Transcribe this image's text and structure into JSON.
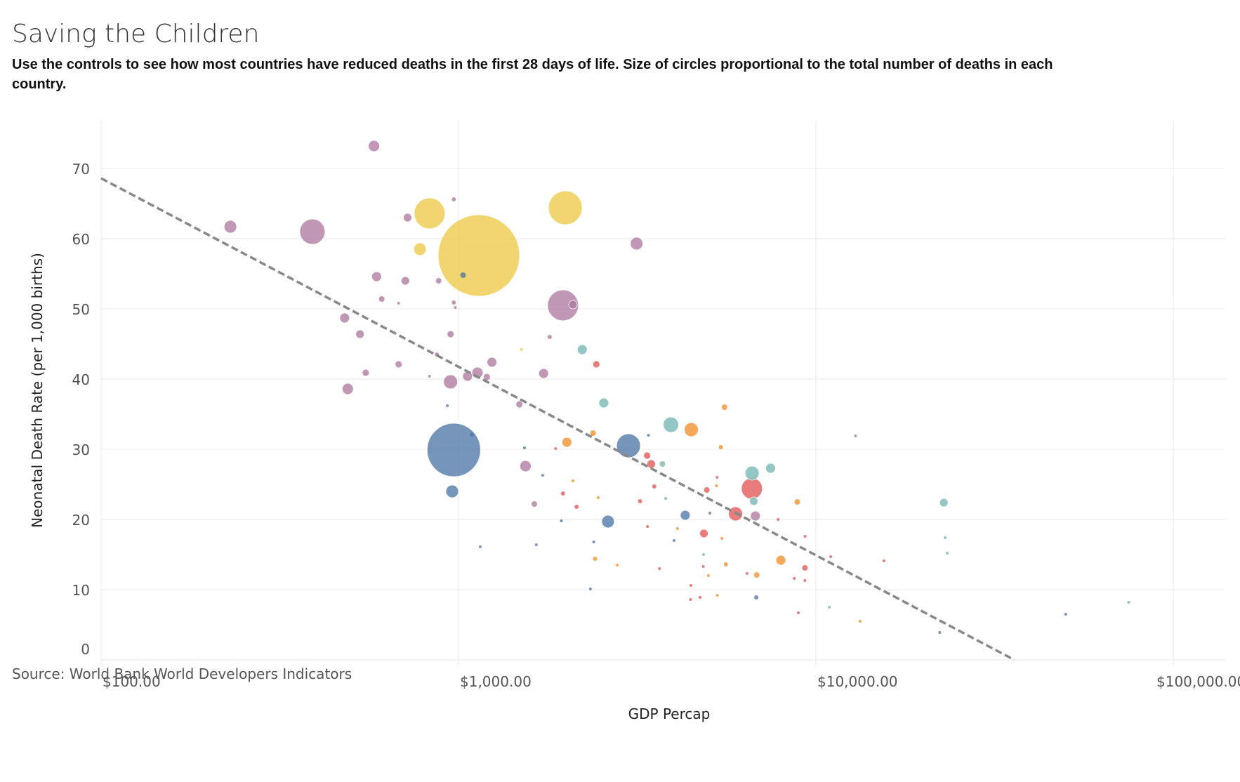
{
  "title": "Saving the Children",
  "subtitle": "Use the controls to see how most countries have reduced deaths in the first 28 days of life. Size of circles proportional to the total number of deaths in each country.",
  "source": "Source: World Bank World Developers Indicators",
  "colors": {
    "purple": "#b07aa1",
    "yellow": "#edc948",
    "blue": "#4e79a7",
    "teal": "#76b7b2",
    "red": "#e15759",
    "orange": "#f28e2b",
    "trend": "#888888",
    "grid": "#e8e8e8"
  },
  "chart_data": {
    "type": "scatter",
    "xlabel": "GDP Percap",
    "ylabel": "Neonatal Death Rate (per 1,000 births)",
    "x_scale": "log",
    "xlim": [
      100,
      130000
    ],
    "ylim": [
      0,
      77
    ],
    "x_ticks": [
      {
        "value": 100,
        "label": "$100.00"
      },
      {
        "value": 1000,
        "label": "$1,000.00"
      },
      {
        "value": 10000,
        "label": "$10,000.00"
      },
      {
        "value": 100000,
        "label": "$100,000.00"
      }
    ],
    "y_ticks": [
      0,
      10,
      20,
      30,
      40,
      50,
      60,
      70
    ],
    "trend_line": {
      "style": "dashed",
      "points": [
        [
          100,
          68.6
        ],
        [
          35900,
          0
        ]
      ]
    },
    "points": [
      {
        "gdp": 580,
        "rate": 73.2,
        "r": 8,
        "color": "purple"
      },
      {
        "gdp": 230,
        "rate": 61.7,
        "r": 9,
        "color": "purple"
      },
      {
        "gdp": 390,
        "rate": 61.0,
        "r": 18,
        "color": "purple"
      },
      {
        "gdp": 830,
        "rate": 63.6,
        "r": 22,
        "color": "yellow"
      },
      {
        "gdp": 720,
        "rate": 63.0,
        "r": 6,
        "color": "purple"
      },
      {
        "gdp": 970,
        "rate": 65.6,
        "r": 3,
        "color": "purple"
      },
      {
        "gdp": 780,
        "rate": 58.5,
        "r": 9,
        "color": "yellow"
      },
      {
        "gdp": 1140,
        "rate": 57.6,
        "r": 58,
        "color": "yellow"
      },
      {
        "gdp": 1990,
        "rate": 64.4,
        "r": 24,
        "color": "yellow"
      },
      {
        "gdp": 3150,
        "rate": 59.3,
        "r": 9,
        "color": "purple"
      },
      {
        "gdp": 1030,
        "rate": 54.8,
        "r": 4,
        "color": "blue"
      },
      {
        "gdp": 590,
        "rate": 54.6,
        "r": 7,
        "color": "purple"
      },
      {
        "gdp": 710,
        "rate": 54.0,
        "r": 6,
        "color": "purple"
      },
      {
        "gdp": 880,
        "rate": 54.0,
        "r": 4,
        "color": "purple"
      },
      {
        "gdp": 610,
        "rate": 51.4,
        "r": 4,
        "color": "purple"
      },
      {
        "gdp": 680,
        "rate": 50.8,
        "r": 2,
        "color": "purple"
      },
      {
        "gdp": 1960,
        "rate": 50.5,
        "r": 22,
        "color": "purple"
      },
      {
        "gdp": 2090,
        "rate": 50.6,
        "r": 6,
        "color": "purple"
      },
      {
        "gdp": 970,
        "rate": 50.9,
        "r": 3,
        "color": "purple"
      },
      {
        "gdp": 980,
        "rate": 50.2,
        "r": 2,
        "color": "purple"
      },
      {
        "gdp": 480,
        "rate": 48.7,
        "r": 7,
        "color": "purple"
      },
      {
        "gdp": 530,
        "rate": 46.4,
        "r": 6,
        "color": "purple"
      },
      {
        "gdp": 950,
        "rate": 46.4,
        "r": 5,
        "color": "purple"
      },
      {
        "gdp": 1800,
        "rate": 46.0,
        "r": 3,
        "color": "purple"
      },
      {
        "gdp": 2220,
        "rate": 44.2,
        "r": 7,
        "color": "teal"
      },
      {
        "gdp": 1500,
        "rate": 44.2,
        "r": 2,
        "color": "yellow"
      },
      {
        "gdp": 870,
        "rate": 43.5,
        "r": 3,
        "color": "purple"
      },
      {
        "gdp": 2430,
        "rate": 42.1,
        "r": 5,
        "color": "red"
      },
      {
        "gdp": 1240,
        "rate": 42.4,
        "r": 7,
        "color": "purple"
      },
      {
        "gdp": 680,
        "rate": 42.1,
        "r": 5,
        "color": "purple"
      },
      {
        "gdp": 550,
        "rate": 40.9,
        "r": 5,
        "color": "purple"
      },
      {
        "gdp": 1130,
        "rate": 40.9,
        "r": 8,
        "color": "purple"
      },
      {
        "gdp": 1730,
        "rate": 40.8,
        "r": 7,
        "color": "purple"
      },
      {
        "gdp": 1060,
        "rate": 40.4,
        "r": 7,
        "color": "purple"
      },
      {
        "gdp": 1200,
        "rate": 40.3,
        "r": 5,
        "color": "purple"
      },
      {
        "gdp": 830,
        "rate": 40.4,
        "r": 2,
        "color": "purple"
      },
      {
        "gdp": 950,
        "rate": 39.6,
        "r": 10,
        "color": "purple"
      },
      {
        "gdp": 490,
        "rate": 38.6,
        "r": 8,
        "color": "purple"
      },
      {
        "gdp": 2550,
        "rate": 36.6,
        "r": 7,
        "color": "teal"
      },
      {
        "gdp": 1480,
        "rate": 36.4,
        "r": 5,
        "color": "purple"
      },
      {
        "gdp": 930,
        "rate": 36.2,
        "r": 2,
        "color": "blue"
      },
      {
        "gdp": 5550,
        "rate": 36.0,
        "r": 4,
        "color": "orange"
      },
      {
        "gdp": 3930,
        "rate": 33.5,
        "r": 11,
        "color": "teal"
      },
      {
        "gdp": 4480,
        "rate": 32.8,
        "r": 10,
        "color": "orange"
      },
      {
        "gdp": 2380,
        "rate": 32.3,
        "r": 4,
        "color": "orange"
      },
      {
        "gdp": 1090,
        "rate": 32.1,
        "r": 3,
        "color": "blue"
      },
      {
        "gdp": 3400,
        "rate": 32.0,
        "r": 2,
        "color": "blue"
      },
      {
        "gdp": 12900,
        "rate": 31.9,
        "r": 2,
        "color": "purple"
      },
      {
        "gdp": 970,
        "rate": 29.9,
        "r": 38,
        "color": "blue"
      },
      {
        "gdp": 2010,
        "rate": 31.0,
        "r": 7,
        "color": "orange"
      },
      {
        "gdp": 2990,
        "rate": 30.5,
        "r": 17,
        "color": "blue"
      },
      {
        "gdp": 1530,
        "rate": 30.2,
        "r": 2,
        "color": "blue"
      },
      {
        "gdp": 5420,
        "rate": 30.3,
        "r": 3,
        "color": "orange"
      },
      {
        "gdp": 1870,
        "rate": 30.1,
        "r": 2,
        "color": "red"
      },
      {
        "gdp": 3370,
        "rate": 29.1,
        "r": 5,
        "color": "red"
      },
      {
        "gdp": 3460,
        "rate": 27.9,
        "r": 6,
        "color": "red"
      },
      {
        "gdp": 3720,
        "rate": 27.9,
        "r": 4,
        "color": "teal"
      },
      {
        "gdp": 1540,
        "rate": 27.6,
        "r": 8,
        "color": "purple"
      },
      {
        "gdp": 6630,
        "rate": 26.6,
        "r": 10,
        "color": "teal"
      },
      {
        "gdp": 7470,
        "rate": 27.3,
        "r": 7,
        "color": "teal"
      },
      {
        "gdp": 1720,
        "rate": 26.3,
        "r": 2,
        "color": "blue"
      },
      {
        "gdp": 5290,
        "rate": 26.0,
        "r": 2,
        "color": "red"
      },
      {
        "gdp": 2090,
        "rate": 25.5,
        "r": 2,
        "color": "orange"
      },
      {
        "gdp": 3530,
        "rate": 24.7,
        "r": 3,
        "color": "red"
      },
      {
        "gdp": 5270,
        "rate": 24.8,
        "r": 2,
        "color": "orange"
      },
      {
        "gdp": 6620,
        "rate": 24.4,
        "r": 15,
        "color": "red"
      },
      {
        "gdp": 4950,
        "rate": 24.2,
        "r": 4,
        "color": "red"
      },
      {
        "gdp": 960,
        "rate": 24.0,
        "r": 9,
        "color": "blue"
      },
      {
        "gdp": 1960,
        "rate": 23.7,
        "r": 3,
        "color": "red"
      },
      {
        "gdp": 2460,
        "rate": 23.1,
        "r": 2,
        "color": "orange"
      },
      {
        "gdp": 3800,
        "rate": 23.0,
        "r": 2,
        "color": "teal"
      },
      {
        "gdp": 3220,
        "rate": 22.6,
        "r": 3,
        "color": "red"
      },
      {
        "gdp": 6700,
        "rate": 22.6,
        "r": 6,
        "color": "teal"
      },
      {
        "gdp": 8870,
        "rate": 22.5,
        "r": 4,
        "color": "orange"
      },
      {
        "gdp": 22800,
        "rate": 22.4,
        "r": 6,
        "color": "teal"
      },
      {
        "gdp": 1630,
        "rate": 22.2,
        "r": 4,
        "color": "purple"
      },
      {
        "gdp": 2140,
        "rate": 21.8,
        "r": 3,
        "color": "red"
      },
      {
        "gdp": 5960,
        "rate": 20.8,
        "r": 10,
        "color": "red"
      },
      {
        "gdp": 4310,
        "rate": 20.6,
        "r": 7,
        "color": "blue"
      },
      {
        "gdp": 6770,
        "rate": 20.5,
        "r": 7,
        "color": "purple"
      },
      {
        "gdp": 5050,
        "rate": 20.9,
        "r": 2,
        "color": "blue"
      },
      {
        "gdp": 2620,
        "rate": 19.7,
        "r": 9,
        "color": "blue"
      },
      {
        "gdp": 1940,
        "rate": 19.8,
        "r": 2,
        "color": "blue"
      },
      {
        "gdp": 7840,
        "rate": 20.0,
        "r": 2,
        "color": "red"
      },
      {
        "gdp": 3380,
        "rate": 19.0,
        "r": 2,
        "color": "red"
      },
      {
        "gdp": 4100,
        "rate": 18.7,
        "r": 2,
        "color": "orange"
      },
      {
        "gdp": 4860,
        "rate": 18.0,
        "r": 6,
        "color": "red"
      },
      {
        "gdp": 4010,
        "rate": 17.0,
        "r": 2,
        "color": "blue"
      },
      {
        "gdp": 5460,
        "rate": 17.3,
        "r": 2,
        "color": "orange"
      },
      {
        "gdp": 9330,
        "rate": 17.6,
        "r": 2,
        "color": "red"
      },
      {
        "gdp": 23000,
        "rate": 17.4,
        "r": 2,
        "color": "teal"
      },
      {
        "gdp": 2390,
        "rate": 16.8,
        "r": 2,
        "color": "blue"
      },
      {
        "gdp": 1650,
        "rate": 16.4,
        "r": 2,
        "color": "blue"
      },
      {
        "gdp": 1150,
        "rate": 16.1,
        "r": 2,
        "color": "blue"
      },
      {
        "gdp": 23300,
        "rate": 15.2,
        "r": 2,
        "color": "teal"
      },
      {
        "gdp": 4850,
        "rate": 15.0,
        "r": 2,
        "color": "teal"
      },
      {
        "gdp": 11000,
        "rate": 14.7,
        "r": 2,
        "color": "red"
      },
      {
        "gdp": 2410,
        "rate": 14.4,
        "r": 3,
        "color": "orange"
      },
      {
        "gdp": 7980,
        "rate": 14.2,
        "r": 7,
        "color": "orange"
      },
      {
        "gdp": 15500,
        "rate": 14.1,
        "r": 2,
        "color": "red"
      },
      {
        "gdp": 5600,
        "rate": 13.6,
        "r": 3,
        "color": "orange"
      },
      {
        "gdp": 2780,
        "rate": 13.5,
        "r": 2,
        "color": "orange"
      },
      {
        "gdp": 4840,
        "rate": 13.3,
        "r": 2,
        "color": "red"
      },
      {
        "gdp": 9320,
        "rate": 13.1,
        "r": 4,
        "color": "red"
      },
      {
        "gdp": 3650,
        "rate": 13.0,
        "r": 2,
        "color": "red"
      },
      {
        "gdp": 6420,
        "rate": 12.3,
        "r": 2,
        "color": "red"
      },
      {
        "gdp": 6830,
        "rate": 12.1,
        "r": 4,
        "color": "orange"
      },
      {
        "gdp": 5000,
        "rate": 12.0,
        "r": 2,
        "color": "orange"
      },
      {
        "gdp": 8700,
        "rate": 11.6,
        "r": 2,
        "color": "red"
      },
      {
        "gdp": 9320,
        "rate": 11.3,
        "r": 2,
        "color": "red"
      },
      {
        "gdp": 4470,
        "rate": 10.6,
        "r": 2,
        "color": "red"
      },
      {
        "gdp": 2340,
        "rate": 10.1,
        "r": 2,
        "color": "blue"
      },
      {
        "gdp": 5300,
        "rate": 9.2,
        "r": 2,
        "color": "orange"
      },
      {
        "gdp": 4740,
        "rate": 8.9,
        "r": 2,
        "color": "red"
      },
      {
        "gdp": 6810,
        "rate": 8.9,
        "r": 3,
        "color": "blue"
      },
      {
        "gdp": 4460,
        "rate": 8.6,
        "r": 2,
        "color": "red"
      },
      {
        "gdp": 75000,
        "rate": 8.2,
        "r": 2,
        "color": "teal"
      },
      {
        "gdp": 10900,
        "rate": 7.5,
        "r": 2,
        "color": "teal"
      },
      {
        "gdp": 8930,
        "rate": 6.7,
        "r": 2,
        "color": "red"
      },
      {
        "gdp": 50000,
        "rate": 6.5,
        "r": 2,
        "color": "blue"
      },
      {
        "gdp": 13300,
        "rate": 5.5,
        "r": 2,
        "color": "orange"
      },
      {
        "gdp": 22200,
        "rate": 3.9,
        "r": 2,
        "color": "blue"
      }
    ]
  }
}
